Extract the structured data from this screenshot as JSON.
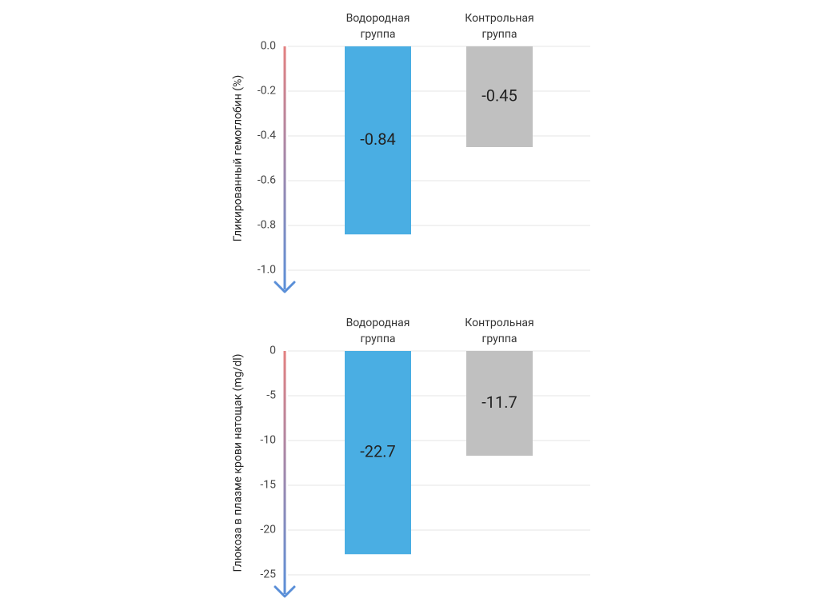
{
  "chart_data": [
    {
      "type": "bar",
      "ylabel": "Гликированный гемоглобин (%)",
      "categories": [
        "Водородная группа",
        "Контрольная группа"
      ],
      "values": [
        -0.84,
        -0.45
      ],
      "colors": [
        "#4aaee3",
        "#c0c0c0"
      ],
      "ylim": [
        -1.0,
        0.0
      ],
      "yticks": [
        {
          "value": 0.0,
          "label": "0.0"
        },
        -0.2,
        -0.4,
        -0.6,
        -0.8,
        {
          "value": -1.0,
          "label": "-1.0"
        }
      ],
      "grid": true
    },
    {
      "type": "bar",
      "ylabel": "Глюкоза в плазме крови натощак (mg/dl)",
      "categories": [
        "Водородная группа",
        "Контрольная группа"
      ],
      "values": [
        -22.7,
        -11.7
      ],
      "colors": [
        "#4aaee3",
        "#c0c0c0"
      ],
      "ylim": [
        -25,
        0
      ],
      "yticks": [
        0,
        -5,
        -10,
        -15,
        -20,
        -25
      ],
      "grid": true
    }
  ]
}
